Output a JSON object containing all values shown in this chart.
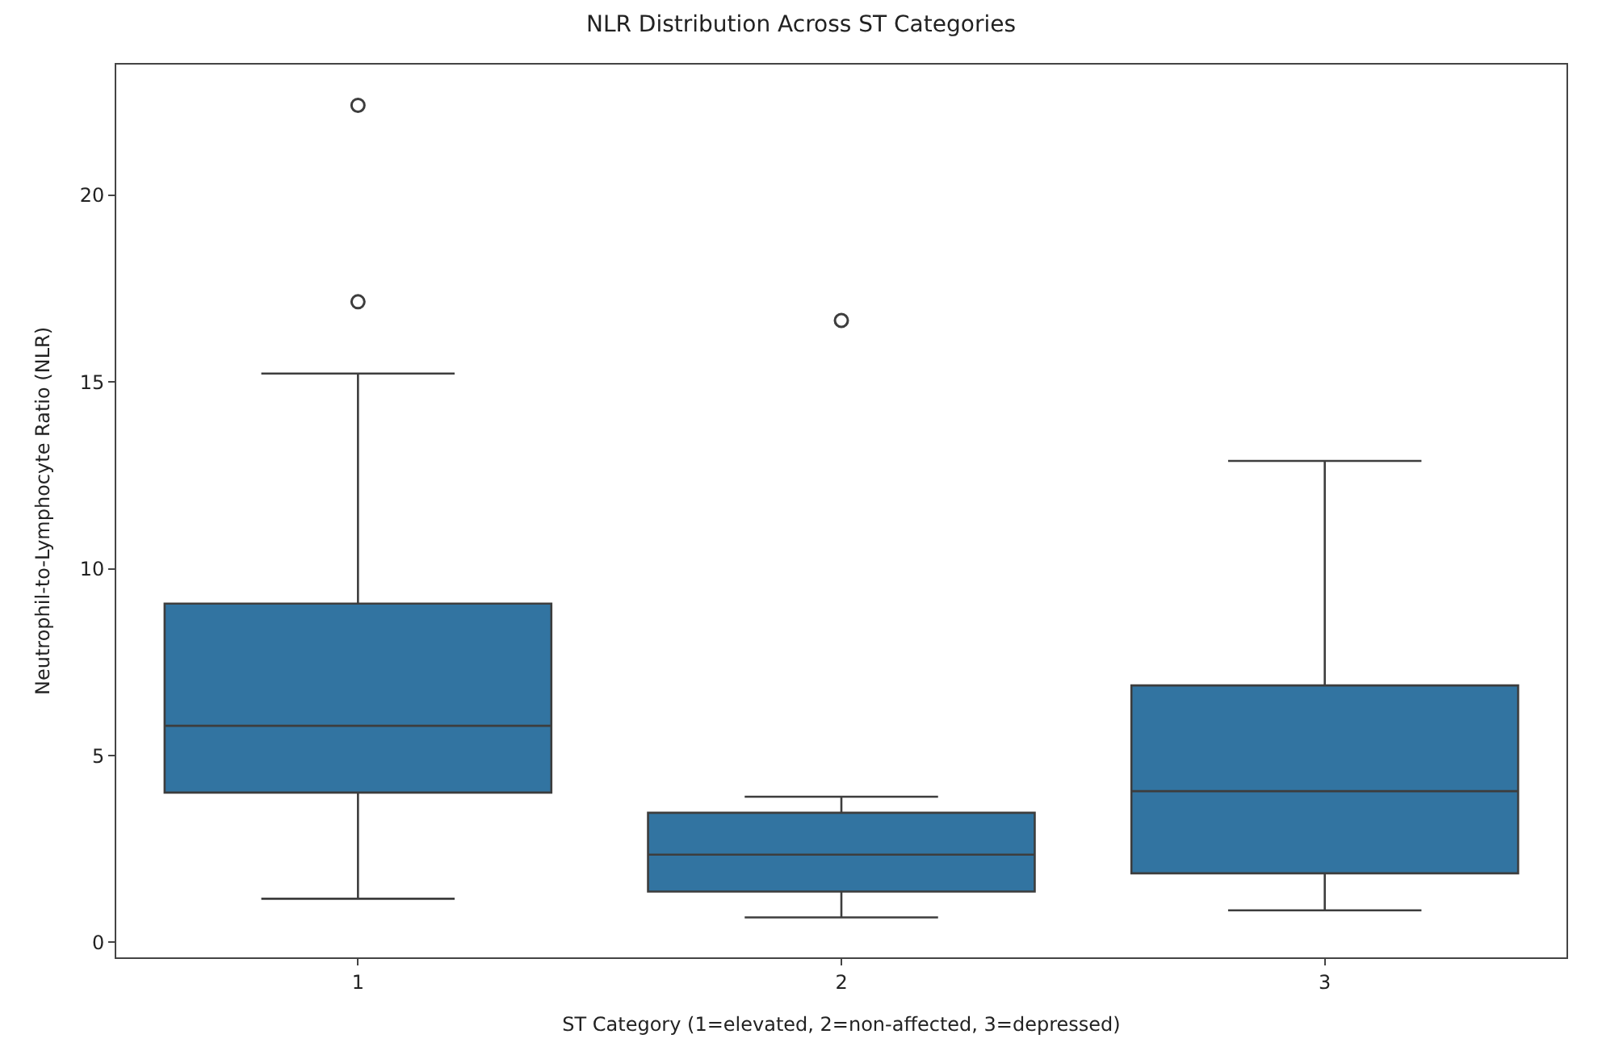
{
  "chart_data": {
    "type": "box",
    "title": "NLR Distribution Across ST Categories",
    "xlabel": "ST Category (1=elevated, 2=non-affected, 3=depressed)",
    "ylabel": "Neutrophil-to-Lymphocyte Ratio (NLR)",
    "categories": [
      "1",
      "2",
      "3"
    ],
    "color": "#3274a1",
    "boxes": [
      {
        "low": 1.17,
        "q1": 4.01,
        "median": 5.8,
        "q3": 9.07,
        "high": 15.23,
        "outliers": [
          17.15,
          22.41
        ]
      },
      {
        "low": 0.67,
        "q1": 1.36,
        "median": 2.35,
        "q3": 3.47,
        "high": 3.9,
        "outliers": [
          16.65
        ]
      },
      {
        "low": 0.86,
        "q1": 1.85,
        "median": 4.05,
        "q3": 6.88,
        "high": 12.89
      }
    ],
    "ylim": [
      -0.4,
      23.5
    ],
    "yticks": [
      0,
      5,
      10,
      15,
      20
    ]
  }
}
